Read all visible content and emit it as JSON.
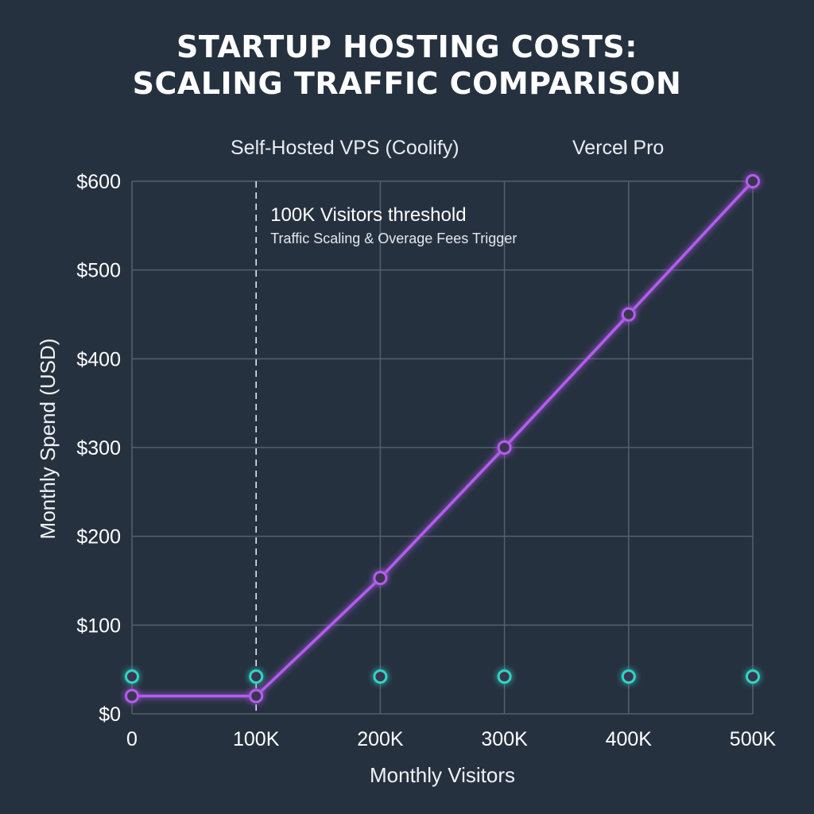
{
  "chart_data": {
    "type": "line",
    "title_lines": [
      "STARTUP HOSTING COSTS:",
      "SCALING TRAFFIC COMPARISON"
    ],
    "xlabel": "Monthly Visitors",
    "ylabel": "Monthly Spend (USD)",
    "x": [
      0,
      100000,
      200000,
      300000,
      400000,
      500000
    ],
    "x_tick_labels": [
      "0",
      "100K",
      "200K",
      "300K",
      "400K",
      "500K"
    ],
    "y_ticks": [
      0,
      100,
      200,
      300,
      400,
      500,
      600
    ],
    "y_tick_labels": [
      "$0",
      "$100",
      "$200",
      "$300",
      "$400",
      "$500",
      "$600"
    ],
    "xlim": [
      0,
      500000
    ],
    "ylim": [
      0,
      600
    ],
    "grid": true,
    "legend_position": "top-center",
    "series": [
      {
        "name": "Self-Hosted VPS (Coolify)",
        "color": "#2fd6c4",
        "values": [
          42,
          42,
          42,
          42,
          42,
          42
        ]
      },
      {
        "name": "Vercel Pro",
        "color": "#b45cf0",
        "values": [
          20,
          20,
          153,
          300,
          450,
          600
        ]
      }
    ],
    "annotation": {
      "x": 100000,
      "line_style": "dashed",
      "label": "100K Visitors threshold",
      "sublabel": "Traffic Scaling & Overage Fees Trigger"
    }
  }
}
